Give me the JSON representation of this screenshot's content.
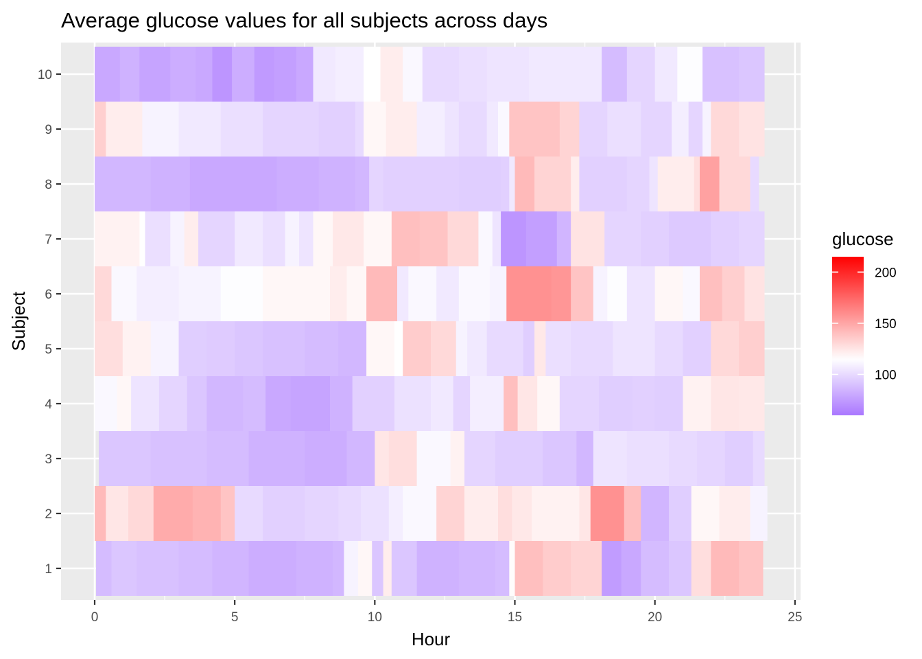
{
  "chart_data": {
    "type": "heatmap",
    "title": "Average glucose values for all subjects across days",
    "xlabel": "Hour",
    "ylabel": "Subject",
    "xlim": [
      -1.2,
      25.2
    ],
    "x_ticks": [
      0,
      5,
      10,
      15,
      20,
      25
    ],
    "x_tick_labels": [
      "0",
      "5",
      "10",
      "15",
      "20",
      "25"
    ],
    "y_categories": [
      "1",
      "2",
      "3",
      "4",
      "5",
      "6",
      "7",
      "8",
      "9",
      "10"
    ],
    "grid": true,
    "legend": {
      "title": "glucose",
      "position": "right",
      "ticks": [
        100,
        150,
        200
      ],
      "tick_labels": [
        "100",
        "150",
        "200"
      ],
      "range": [
        60,
        215
      ],
      "low_color": "#aa77ff",
      "mid_color": "#ffffff",
      "mid_value": 115,
      "high_color": "#ff0000"
    },
    "rows": [
      {
        "subject": "1",
        "x_start": 0.05,
        "x_end": 23.85,
        "segments": [
          [
            0.05,
            88
          ],
          [
            0.6,
            92
          ],
          [
            1.5,
            90
          ],
          [
            3,
            88
          ],
          [
            4.2,
            85
          ],
          [
            5.5,
            82
          ],
          [
            7.2,
            84
          ],
          [
            8.5,
            86
          ],
          [
            8.9,
            110
          ],
          [
            9.4,
            118
          ],
          [
            9.9,
            92
          ],
          [
            10.3,
            122
          ],
          [
            10.6,
            92
          ],
          [
            11.5,
            84
          ],
          [
            13,
            86
          ],
          [
            14.3,
            88
          ],
          [
            14.8,
            116
          ],
          [
            15,
            140
          ],
          [
            16,
            135
          ],
          [
            17,
            132
          ],
          [
            18.1,
            75
          ],
          [
            18.8,
            80
          ],
          [
            19.5,
            88
          ],
          [
            20.5,
            92
          ],
          [
            21.3,
            128
          ],
          [
            22,
            142
          ],
          [
            23,
            138
          ]
        ]
      },
      {
        "subject": "2",
        "x_start": 0,
        "x_end": 24,
        "segments": [
          [
            0,
            142
          ],
          [
            0.4,
            125
          ],
          [
            1.2,
            130
          ],
          [
            2.1,
            148
          ],
          [
            3.5,
            145
          ],
          [
            4.5,
            138
          ],
          [
            5,
            100
          ],
          [
            6,
            96
          ],
          [
            7.5,
            98
          ],
          [
            8.7,
            100
          ],
          [
            9.5,
            103
          ],
          [
            10.5,
            108
          ],
          [
            11,
            112
          ],
          [
            12.2,
            132
          ],
          [
            13.2,
            122
          ],
          [
            14.4,
            128
          ],
          [
            14.9,
            124
          ],
          [
            15.6,
            120
          ],
          [
            17.3,
            125
          ],
          [
            17.7,
            158
          ],
          [
            18.9,
            140
          ],
          [
            19.5,
            85
          ],
          [
            20.5,
            95
          ],
          [
            21.3,
            118
          ],
          [
            22.3,
            122
          ],
          [
            23.4,
            110
          ]
        ]
      },
      {
        "subject": "3",
        "x_start": 0.15,
        "x_end": 23.9,
        "segments": [
          [
            0.15,
            92
          ],
          [
            2,
            90
          ],
          [
            4,
            88
          ],
          [
            5.5,
            84
          ],
          [
            7.5,
            82
          ],
          [
            9,
            86
          ],
          [
            10,
            125
          ],
          [
            10.5,
            128
          ],
          [
            11.5,
            112
          ],
          [
            12.7,
            120
          ],
          [
            13.2,
            98
          ],
          [
            14.3,
            95
          ],
          [
            16,
            92
          ],
          [
            17.2,
            86
          ],
          [
            17.8,
            104
          ],
          [
            19,
            102
          ],
          [
            20.5,
            100
          ],
          [
            21.5,
            98
          ],
          [
            22.5,
            95
          ],
          [
            23.5,
            100
          ]
        ]
      },
      {
        "subject": "4",
        "x_start": 0,
        "x_end": 23.9,
        "segments": [
          [
            0,
            112
          ],
          [
            0.8,
            118
          ],
          [
            1.3,
            104
          ],
          [
            2.3,
            98
          ],
          [
            3.3,
            92
          ],
          [
            4,
            86
          ],
          [
            5.3,
            88
          ],
          [
            6.1,
            80
          ],
          [
            7,
            78
          ],
          [
            8.4,
            84
          ],
          [
            9.2,
            96
          ],
          [
            10.7,
            103
          ],
          [
            12,
            106
          ],
          [
            12.8,
            98
          ],
          [
            13.4,
            108
          ],
          [
            14.2,
            108
          ],
          [
            14.6,
            140
          ],
          [
            15.1,
            125
          ],
          [
            15.8,
            118
          ],
          [
            16.6,
            98
          ],
          [
            18,
            95
          ],
          [
            19.2,
            96
          ],
          [
            20,
            95
          ],
          [
            21,
            120
          ],
          [
            22,
            125
          ],
          [
            23,
            124
          ]
        ]
      },
      {
        "subject": "5",
        "x_start": 0,
        "x_end": 23.9,
        "segments": [
          [
            0,
            128
          ],
          [
            1,
            120
          ],
          [
            2,
            110
          ],
          [
            3,
            95
          ],
          [
            4,
            94
          ],
          [
            5,
            92
          ],
          [
            6,
            90
          ],
          [
            7.5,
            88
          ],
          [
            8.7,
            86
          ],
          [
            9.7,
            118
          ],
          [
            10.7,
            115
          ],
          [
            11,
            135
          ],
          [
            12,
            130
          ],
          [
            12.9,
            110
          ],
          [
            13.3,
            106
          ],
          [
            14,
            100
          ],
          [
            15.3,
            95
          ],
          [
            15.7,
            124
          ],
          [
            16.1,
            102
          ],
          [
            17,
            100
          ],
          [
            18.5,
            104
          ],
          [
            20,
            100
          ],
          [
            21,
            96
          ],
          [
            22,
            130
          ],
          [
            23,
            134
          ]
        ]
      },
      {
        "subject": "6",
        "x_start": 0,
        "x_end": 23.9,
        "segments": [
          [
            0,
            130
          ],
          [
            0.6,
            112
          ],
          [
            1.5,
            108
          ],
          [
            3,
            110
          ],
          [
            4.5,
            114
          ],
          [
            6,
            118
          ],
          [
            7.5,
            118
          ],
          [
            8.4,
            122
          ],
          [
            9,
            118
          ],
          [
            9.7,
            142
          ],
          [
            10.8,
            106
          ],
          [
            11.2,
            112
          ],
          [
            12.2,
            106
          ],
          [
            13,
            112
          ],
          [
            14.1,
            110
          ],
          [
            14.7,
            158
          ],
          [
            16.3,
            156
          ],
          [
            17,
            138
          ],
          [
            17.8,
            110
          ],
          [
            18.3,
            114
          ],
          [
            19,
            104
          ],
          [
            20,
            118
          ],
          [
            21,
            112
          ],
          [
            21.6,
            140
          ],
          [
            22.4,
            134
          ],
          [
            23.2,
            126
          ]
        ]
      },
      {
        "subject": "7",
        "x_start": 0,
        "x_end": 23.9,
        "segments": [
          [
            0,
            120
          ],
          [
            1.6,
            115
          ],
          [
            1.8,
            102
          ],
          [
            2.7,
            110
          ],
          [
            3.2,
            122
          ],
          [
            3.7,
            98
          ],
          [
            5,
            106
          ],
          [
            6,
            102
          ],
          [
            6.8,
            110
          ],
          [
            7.3,
            104
          ],
          [
            7.8,
            118
          ],
          [
            8.5,
            124
          ],
          [
            9.6,
            118
          ],
          [
            10.6,
            140
          ],
          [
            11.6,
            138
          ],
          [
            12.6,
            130
          ],
          [
            13.7,
            112
          ],
          [
            14.2,
            104
          ],
          [
            14.5,
            72
          ],
          [
            15.4,
            76
          ],
          [
            16.5,
            85
          ],
          [
            17,
            126
          ],
          [
            18.2,
            98
          ],
          [
            19.5,
            96
          ],
          [
            20.5,
            93
          ],
          [
            22,
            96
          ],
          [
            23,
            98
          ]
        ]
      },
      {
        "subject": "8",
        "x_start": 0,
        "x_end": 23.7,
        "segments": [
          [
            0,
            86
          ],
          [
            2,
            84
          ],
          [
            3.4,
            80
          ],
          [
            5,
            80
          ],
          [
            6.5,
            82
          ],
          [
            8,
            84
          ],
          [
            9.3,
            86
          ],
          [
            9.8,
            98
          ],
          [
            10.3,
            96
          ],
          [
            11.4,
            96
          ],
          [
            13,
            95
          ],
          [
            14.5,
            96
          ],
          [
            14.8,
            106
          ],
          [
            15,
            142
          ],
          [
            15.7,
            132
          ],
          [
            17,
            122
          ],
          [
            17.3,
            96
          ],
          [
            19,
            98
          ],
          [
            19.8,
            104
          ],
          [
            20.1,
            122
          ],
          [
            21.4,
            128
          ],
          [
            21.6,
            152
          ],
          [
            22.3,
            130
          ],
          [
            23.4,
            100
          ]
        ]
      },
      {
        "subject": "9",
        "x_start": 0,
        "x_end": 23.9,
        "segments": [
          [
            0,
            134
          ],
          [
            0.4,
            122
          ],
          [
            1.7,
            110
          ],
          [
            3,
            106
          ],
          [
            4.5,
            102
          ],
          [
            6,
            98
          ],
          [
            8,
            96
          ],
          [
            9.3,
            100
          ],
          [
            9.6,
            118
          ],
          [
            10.4,
            122
          ],
          [
            11.5,
            108
          ],
          [
            12.5,
            104
          ],
          [
            13,
            100
          ],
          [
            14,
            106
          ],
          [
            14.4,
            112
          ],
          [
            14.8,
            138
          ],
          [
            16.6,
            132
          ],
          [
            17.3,
            98
          ],
          [
            18.3,
            102
          ],
          [
            19.5,
            98
          ],
          [
            20.6,
            108
          ],
          [
            21.2,
            98
          ],
          [
            21.7,
            110
          ],
          [
            22,
            130
          ],
          [
            23,
            126
          ]
        ]
      },
      {
        "subject": "10",
        "x_start": 0,
        "x_end": 23.9,
        "segments": [
          [
            0,
            80
          ],
          [
            0.9,
            84
          ],
          [
            1.6,
            78
          ],
          [
            2.7,
            82
          ],
          [
            3.6,
            80
          ],
          [
            4.2,
            72
          ],
          [
            4.9,
            82
          ],
          [
            5.7,
            74
          ],
          [
            6.4,
            76
          ],
          [
            7.2,
            80
          ],
          [
            7.8,
            106
          ],
          [
            8.6,
            108
          ],
          [
            9.6,
            115
          ],
          [
            10.2,
            122
          ],
          [
            11,
            112
          ],
          [
            11.7,
            100
          ],
          [
            13,
            102
          ],
          [
            14,
            104
          ],
          [
            15.5,
            106
          ],
          [
            17.5,
            106
          ],
          [
            18.1,
            88
          ],
          [
            19,
            98
          ],
          [
            20,
            106
          ],
          [
            20.8,
            114
          ],
          [
            21.7,
            90
          ],
          [
            23,
            92
          ]
        ]
      }
    ]
  }
}
